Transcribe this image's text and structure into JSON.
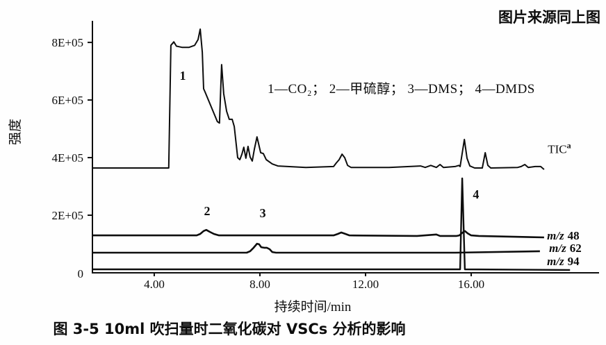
{
  "page": {
    "source_note": "图片来源同上图",
    "caption": "图 3-5  10ml 吹扫量时二氧化碳对 VSCs 分析的影响"
  },
  "chart_data": {
    "type": "line",
    "title": "",
    "xlabel": "持续时间/min",
    "ylabel": "强度",
    "legend_text": "1—CO₂； 2—甲硫醇； 3—DMS； 4—DMDS",
    "grid": false,
    "xlim": [
      1.66,
      20.84
    ],
    "ylim": [
      0,
      875000
    ],
    "x_ticks": [
      {
        "value": 4,
        "label": "4.00"
      },
      {
        "value": 8,
        "label": "8.00"
      },
      {
        "value": 12,
        "label": "12.00"
      },
      {
        "value": 16,
        "label": "16.00"
      }
    ],
    "y_ticks": [
      {
        "value": 800000,
        "label": "8E+05"
      },
      {
        "value": 600000,
        "label": "6E+05"
      },
      {
        "value": 400000,
        "label": "4E+05"
      },
      {
        "value": 200000,
        "label": "2E+05"
      },
      {
        "value": 0,
        "label": "0"
      }
    ],
    "series": [
      {
        "name": "TIC",
        "label": {
          "text": "TIC",
          "sup": "a",
          "x": 18.9,
          "y": 430000
        },
        "stroke_width": 2.0,
        "points": [
          [
            1.66,
            364000
          ],
          [
            4.55,
            364000
          ],
          [
            4.63,
            790000
          ],
          [
            4.74,
            802000
          ],
          [
            4.84,
            787000
          ],
          [
            5.05,
            783000
          ],
          [
            5.32,
            783000
          ],
          [
            5.53,
            790000
          ],
          [
            5.66,
            810000
          ],
          [
            5.74,
            846000
          ],
          [
            5.82,
            766000
          ],
          [
            5.87,
            639000
          ],
          [
            5.92,
            629000
          ],
          [
            6.39,
            525000
          ],
          [
            6.47,
            520000
          ],
          [
            6.55,
            723000
          ],
          [
            6.63,
            622000
          ],
          [
            6.74,
            561000
          ],
          [
            6.84,
            533000
          ],
          [
            6.95,
            533000
          ],
          [
            7.03,
            508000
          ],
          [
            7.16,
            400000
          ],
          [
            7.24,
            393000
          ],
          [
            7.32,
            412000
          ],
          [
            7.39,
            436000
          ],
          [
            7.47,
            398000
          ],
          [
            7.55,
            439000
          ],
          [
            7.63,
            402000
          ],
          [
            7.71,
            388000
          ],
          [
            7.79,
            429000
          ],
          [
            7.89,
            472000
          ],
          [
            8.03,
            417000
          ],
          [
            8.13,
            414000
          ],
          [
            8.24,
            393000
          ],
          [
            8.47,
            378000
          ],
          [
            8.68,
            371000
          ],
          [
            9.74,
            366000
          ],
          [
            10.79,
            369000
          ],
          [
            10.89,
            381000
          ],
          [
            11.0,
            393000
          ],
          [
            11.11,
            412000
          ],
          [
            11.21,
            400000
          ],
          [
            11.32,
            373000
          ],
          [
            11.45,
            366000
          ],
          [
            12.89,
            366000
          ],
          [
            14.08,
            371000
          ],
          [
            14.26,
            366000
          ],
          [
            14.47,
            373000
          ],
          [
            14.68,
            366000
          ],
          [
            14.82,
            376000
          ],
          [
            14.95,
            366000
          ],
          [
            15.39,
            369000
          ],
          [
            15.53,
            373000
          ],
          [
            15.58,
            369000
          ],
          [
            15.74,
            463000
          ],
          [
            15.84,
            398000
          ],
          [
            15.95,
            371000
          ],
          [
            16.13,
            364000
          ],
          [
            16.42,
            364000
          ],
          [
            16.53,
            417000
          ],
          [
            16.63,
            373000
          ],
          [
            16.74,
            364000
          ],
          [
            17.76,
            366000
          ],
          [
            17.89,
            369000
          ],
          [
            18.03,
            376000
          ],
          [
            18.16,
            366000
          ],
          [
            18.42,
            369000
          ],
          [
            18.63,
            369000
          ],
          [
            18.76,
            359000
          ]
        ]
      },
      {
        "name": "m/z 48",
        "label": {
          "prefix": "m/z",
          "value": "48",
          "x": 18.87,
          "y": 130000
        },
        "stroke_width": 2.6,
        "points": [
          [
            1.66,
            130000
          ],
          [
            5.61,
            130000
          ],
          [
            5.74,
            135000
          ],
          [
            5.87,
            145000
          ],
          [
            5.97,
            149000
          ],
          [
            6.11,
            142000
          ],
          [
            6.26,
            135000
          ],
          [
            6.45,
            130000
          ],
          [
            10.79,
            130000
          ],
          [
            10.95,
            135000
          ],
          [
            11.08,
            140000
          ],
          [
            11.24,
            135000
          ],
          [
            11.39,
            130000
          ],
          [
            13.95,
            128000
          ],
          [
            14.68,
            133000
          ],
          [
            14.82,
            128000
          ],
          [
            15.45,
            128000
          ],
          [
            15.55,
            130000
          ],
          [
            15.68,
            140000
          ],
          [
            15.76,
            145000
          ],
          [
            15.87,
            137000
          ],
          [
            16.0,
            130000
          ],
          [
            16.29,
            128000
          ],
          [
            18.76,
            123000
          ]
        ]
      },
      {
        "name": "m/z 62",
        "label": {
          "prefix": "m/z",
          "value": "62",
          "x": 18.95,
          "y": 87000
        },
        "stroke_width": 2.6,
        "points": [
          [
            1.66,
            70000
          ],
          [
            7.5,
            70000
          ],
          [
            7.63,
            75000
          ],
          [
            7.76,
            87000
          ],
          [
            7.89,
            101000
          ],
          [
            7.97,
            99000
          ],
          [
            8.05,
            89000
          ],
          [
            8.16,
            87000
          ],
          [
            8.26,
            87000
          ],
          [
            8.37,
            82000
          ],
          [
            8.47,
            72000
          ],
          [
            8.61,
            70000
          ],
          [
            15.4,
            70000
          ],
          [
            18.6,
            75000
          ]
        ]
      },
      {
        "name": "m/z 94",
        "label": {
          "prefix": "m/z",
          "value": "94",
          "x": 18.87,
          "y": 41000
        },
        "stroke_width": 2.4,
        "points": [
          [
            1.66,
            12000
          ],
          [
            15.45,
            12000
          ],
          [
            15.58,
            12000
          ],
          [
            15.66,
            328000
          ],
          [
            15.76,
            12000
          ],
          [
            19.74,
            10000
          ]
        ]
      }
    ],
    "peak_annotations": [
      {
        "label": "1",
        "compound": "CO₂",
        "x": 5.08,
        "y": 670000
      },
      {
        "label": "2",
        "compound": "甲硫醇",
        "x": 6.0,
        "y": 200000
      },
      {
        "label": "3",
        "compound": "DMS",
        "x": 8.11,
        "y": 193000
      },
      {
        "label": "4",
        "compound": "DMDS",
        "x": 16.18,
        "y": 258000
      }
    ]
  }
}
